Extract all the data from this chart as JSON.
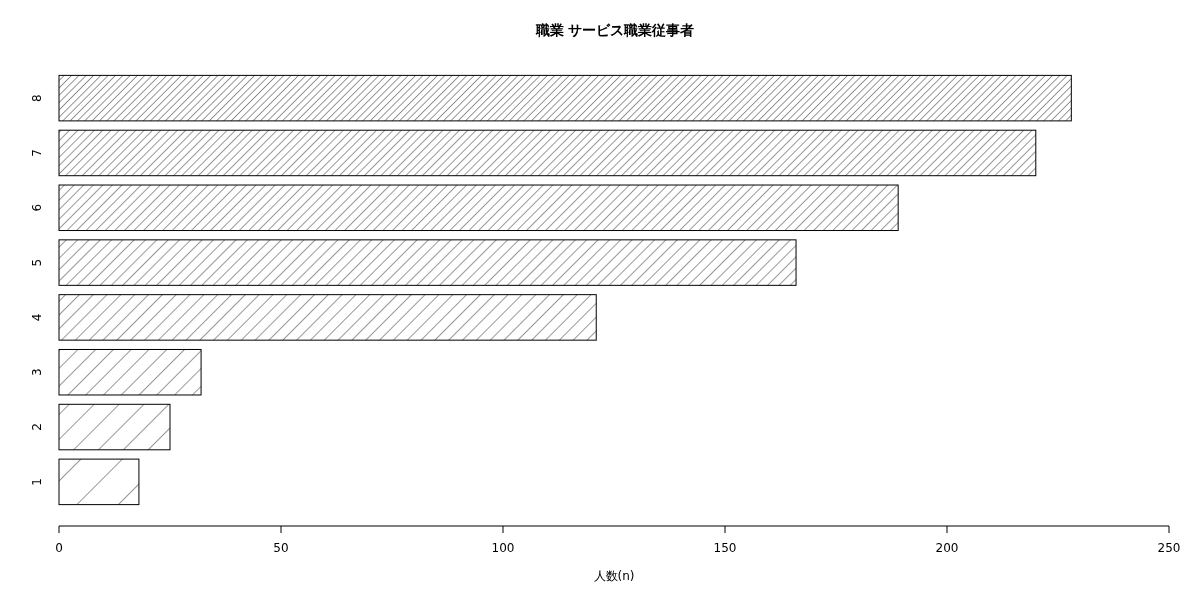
{
  "chart_data": {
    "type": "bar",
    "orientation": "horizontal",
    "title": "職業 サービス職業従事者",
    "xlabel": "人数(n)",
    "categories": [
      "8",
      "7",
      "6",
      "5",
      "4",
      "3",
      "2",
      "1"
    ],
    "values": [
      228,
      220,
      189,
      166,
      121,
      32,
      25,
      18
    ],
    "color": "#000000",
    "xlim": [
      0,
      250
    ],
    "xticks": [
      0,
      50,
      100,
      150,
      200,
      250
    ],
    "grid": false
  }
}
